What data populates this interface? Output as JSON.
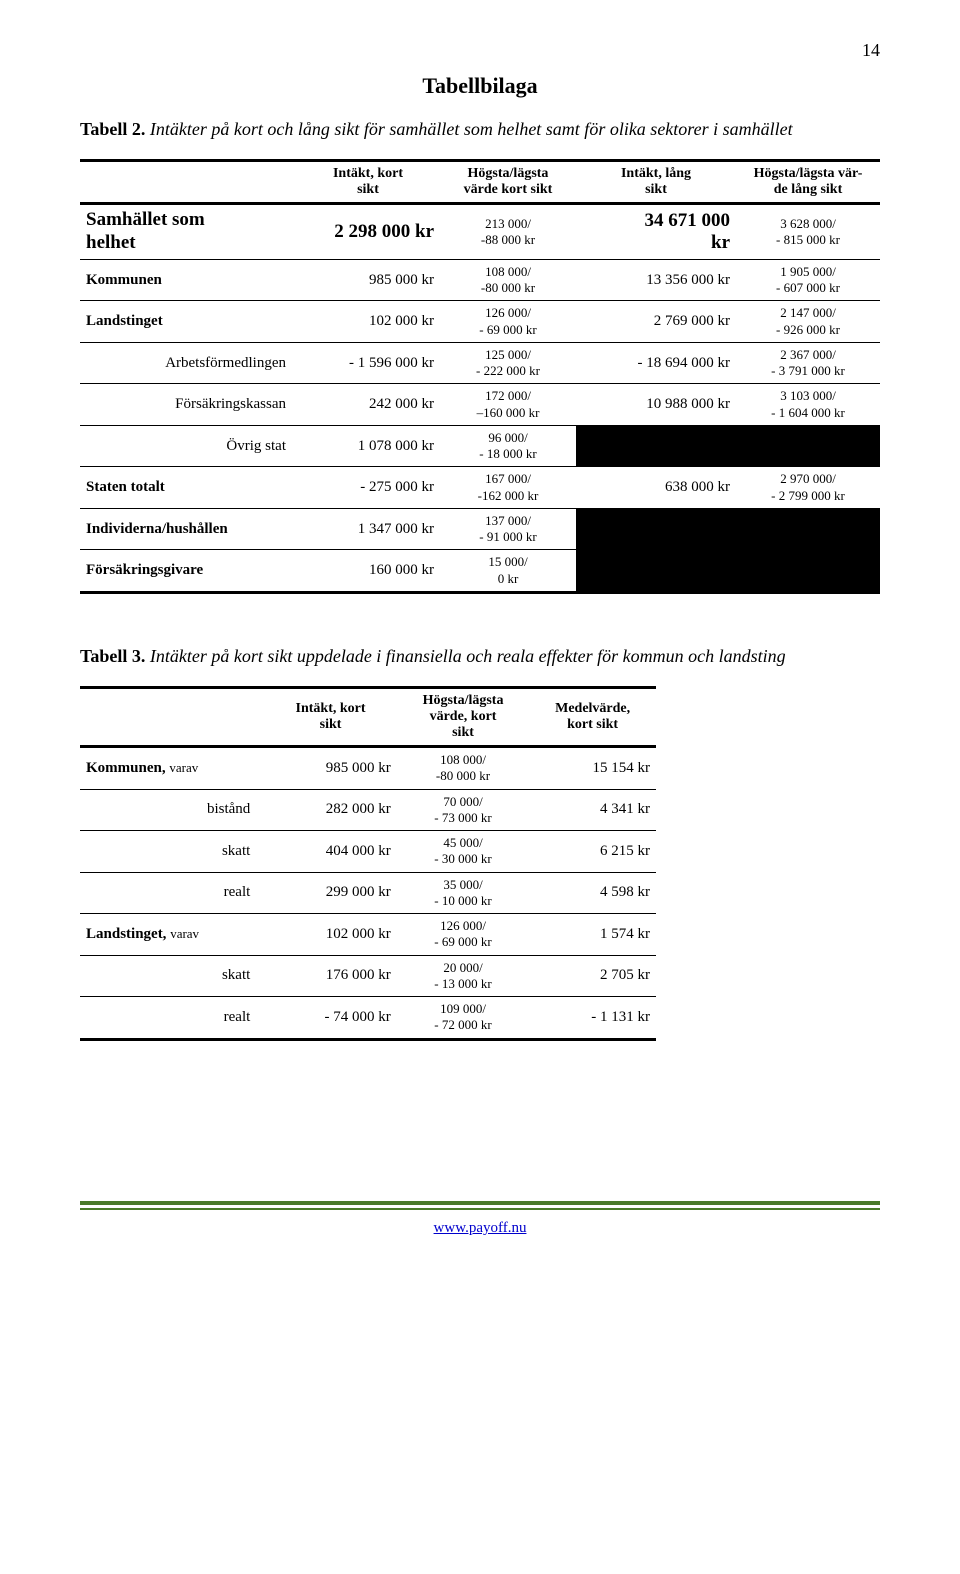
{
  "page_number": "14",
  "title": "Tabellbilaga",
  "caption1": {
    "lead": "Tabell 2.",
    "rest": " Intäkter på kort och lång sikt för samhället som helhet samt för olika sektorer i samhället"
  },
  "table1": {
    "headers": [
      "",
      "Intäkt, kort\nsikt",
      "Högsta/lägsta\nvärde kort sikt",
      "Intäkt, lång\nsikt",
      "Högsta/lägsta vär-\nde lång sikt"
    ],
    "rows": [
      {
        "label_html": "<span class='big'>Samhället som<br>helhet</span>",
        "c1": "<span class='big'>2 298 000 kr</span>",
        "c2": "213 000/\n-88 000 kr",
        "c3": "<span class='big'>34 671 000<br>kr</span>",
        "c4": "3 628 000/\n- 815 000 kr",
        "indent": false
      },
      {
        "label_html": "<span class='boldrow'>Kommunen</span>",
        "c1": "985 000 kr",
        "c2": "108 000/\n-80 000 kr",
        "c3": "13 356 000 kr",
        "c4": "1 905 000/\n- 607 000 kr",
        "indent": false
      },
      {
        "label_html": "<span class='boldrow'>Landstinget</span>",
        "c1": "102 000 kr",
        "c2": "126 000/\n- 69 000 kr",
        "c3": "2 769 000 kr",
        "c4": "2 147 000/\n- 926 000 kr",
        "indent": false
      },
      {
        "label_html": "Arbetsförmedlingen",
        "c1": "- 1 596 000 kr",
        "c2": "125 000/\n- 222 000 kr",
        "c3": "- 18 694 000 kr",
        "c4": "2 367 000/\n- 3 791 000 kr",
        "indent": true
      },
      {
        "label_html": "Försäkringskassan",
        "c1": "242 000 kr",
        "c2": "172 000/\n–160 000 kr",
        "c3": "10 988 000 kr",
        "c4": "3 103 000/\n- 1 604 000 kr",
        "indent": true
      },
      {
        "label_html": "Övrig stat",
        "c1": "1 078 000 kr",
        "c2": "96 000/\n- 18 000 kr",
        "c3": "__SHADE__",
        "c4": "__SHADE__",
        "indent": true
      },
      {
        "label_html": "<span class='boldrow'>Staten totalt</span>",
        "c1": "- 275 000 kr",
        "c2": "167 000/\n-162 000 kr",
        "c3": "638 000 kr",
        "c4": "2 970 000/\n- 2 799 000 kr",
        "indent": false
      },
      {
        "label_html": "<span class='boldrow'>Individerna/hushållen</span>",
        "c1": "1 347 000 kr",
        "c2": "137 000/\n- 91 000 kr",
        "c3": "__SHADE__",
        "c4": "__SHADE__",
        "indent": false
      },
      {
        "label_html": "<span class='boldrow'>Försäkringsgivare</span>",
        "c1": "160 000 kr",
        "c2": "15 000/\n0 kr",
        "c3": "__SHADE__",
        "c4": "__SHADE__",
        "indent": false,
        "last": true
      }
    ]
  },
  "caption2": {
    "lead": "Tabell 3.",
    "rest": " Intäkter på kort sikt uppdelade i finansiella och reala effekter för kommun och landsting"
  },
  "table2": {
    "headers": [
      "",
      "Intäkt, kort\nsikt",
      "Högsta/lägsta\nvärde, kort\nsikt",
      "Medelvärde,\nkort sikt"
    ],
    "rows": [
      {
        "label_html": "<span class='boldrow'>Kommunen,</span> <span class='sm'>varav</span>",
        "c1": "985 000 kr",
        "c2": "108 000/\n-80 000 kr",
        "c3": "15 154 kr",
        "indent": false
      },
      {
        "label_html": "bistånd",
        "c1": "282 000 kr",
        "c2": "70 000/\n- 73 000 kr",
        "c3": "4 341 kr",
        "indent": true
      },
      {
        "label_html": "skatt",
        "c1": "404 000 kr",
        "c2": "45 000/\n- 30 000 kr",
        "c3": "6 215 kr",
        "indent": true
      },
      {
        "label_html": "realt",
        "c1": "299 000 kr",
        "c2": "35 000/\n- 10 000 kr",
        "c3": "4 598 kr",
        "indent": true
      },
      {
        "label_html": "<span class='boldrow'>Landstinget,</span> <span class='sm'>varav</span>",
        "c1": "102 000 kr",
        "c2": "126 000/\n- 69 000 kr",
        "c3": "1 574 kr",
        "indent": false
      },
      {
        "label_html": "skatt",
        "c1": "176 000 kr",
        "c2": "20 000/\n- 13 000 kr",
        "c3": "2 705 kr",
        "indent": true
      },
      {
        "label_html": "realt",
        "c1": "- 74 000 kr",
        "c2": "109 000/\n- 72 000 kr",
        "c3": "- 1 131 kr",
        "indent": true,
        "last": true
      }
    ]
  },
  "footer_link": "www.payoff.nu"
}
